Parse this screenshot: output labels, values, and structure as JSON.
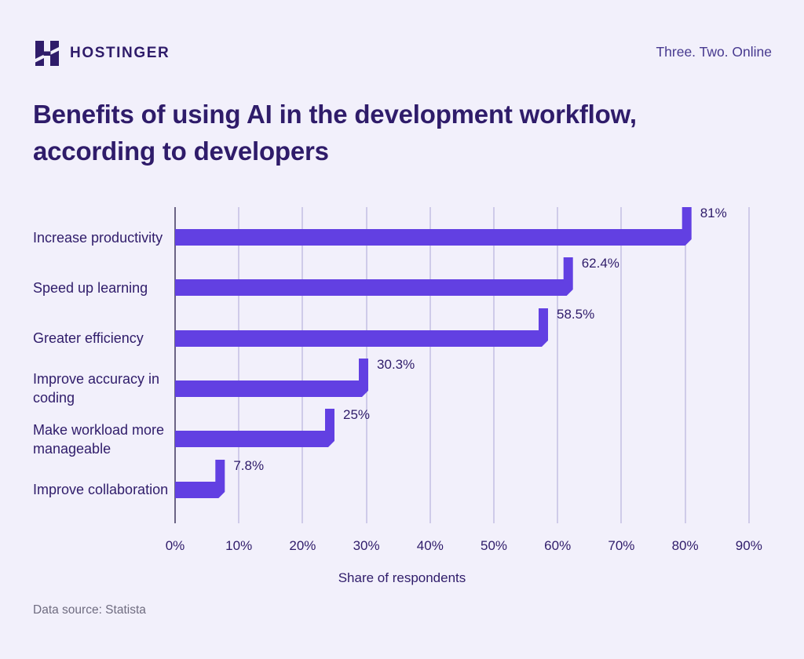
{
  "header": {
    "brand": "HOSTINGER",
    "tagline": "Three. Two. Online"
  },
  "title": {
    "line1": "Benefits of using AI in the development workflow,",
    "line2": "according to developers"
  },
  "chart_data": {
    "type": "bar",
    "orientation": "horizontal",
    "title": "Benefits of using AI in the development workflow, according to developers",
    "categories": [
      "Increase productivity",
      "Speed up learning",
      "Greater efficiency",
      "Improve accuracy in coding",
      "Make workload more manageable",
      "Improve collaboration"
    ],
    "values": [
      81,
      62.4,
      58.5,
      30.3,
      25,
      7.8
    ],
    "value_labels": [
      "81%",
      "62.4%",
      "58.5%",
      "30.3%",
      "25%",
      "7.8%"
    ],
    "xlabel": "Share of respondents",
    "ylabel": "",
    "xlim": [
      0,
      90
    ],
    "x_ticks": [
      "0%",
      "10%",
      "20%",
      "30%",
      "40%",
      "50%",
      "60%",
      "70%",
      "80%",
      "90%"
    ],
    "grid": true,
    "legend": false,
    "bar_color": "#6240e2",
    "grid_color": "#cfcbe9",
    "axis_color": "#6b6485",
    "text_color": "#2f1c6a"
  },
  "footer": {
    "source": "Data source: Statista"
  }
}
